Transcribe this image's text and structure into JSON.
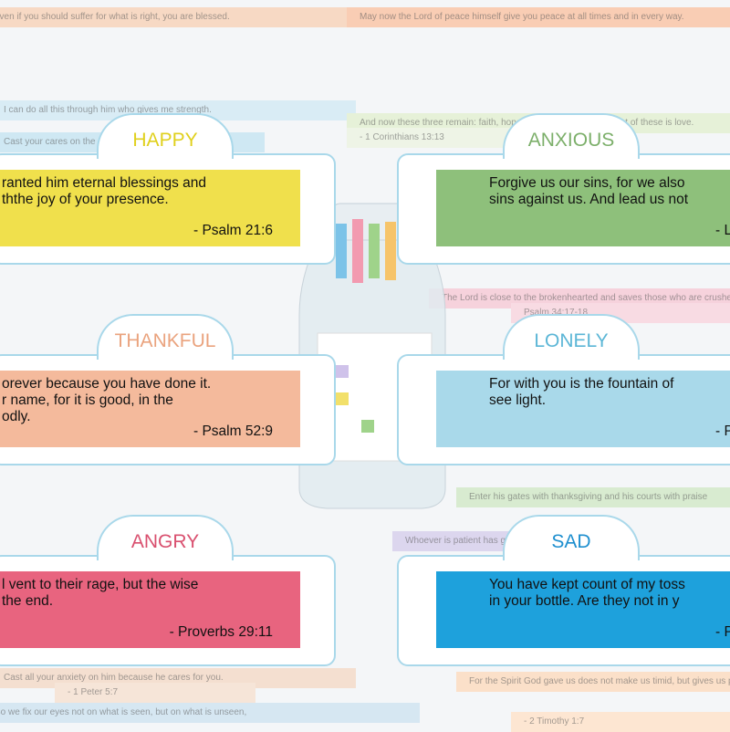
{
  "background": {
    "strips": [
      {
        "text": "even if you should suffer for what is right, you are blessed.",
        "color": "#f7d9c4"
      },
      {
        "text": "May now the Lord of peace himself give you peace at all times and in every way.",
        "color": "#f9cdb4"
      },
      {
        "text": "I can do all this through him who gives me strength.",
        "color": "#d9ecf5"
      },
      {
        "text": "And now these three remain: faith, hope and love. But the greatest of these is love.",
        "color": "#e6f1d8"
      },
      {
        "text": "- 1 Corinthians 13:13",
        "color": "#eef4e6"
      },
      {
        "text": "Cast your cares on the Lord",
        "color": "#cfe8f3"
      },
      {
        "text": "The Lord is close to the brokenhearted and saves those who are crushed in spirit.",
        "color": "#f6d2dc"
      },
      {
        "text": "Psalm 34:17-18",
        "color": "#f8dbe3"
      },
      {
        "text": "Enter his gates with thanksgiving and his courts with praise",
        "color": "#d8ebd0"
      },
      {
        "text": "Whoever is patient has great understanding",
        "color": "#dcd6ee"
      },
      {
        "text": "Cast all your anxiety on him because he cares for you.",
        "color": "#f4dfd0"
      },
      {
        "text": "- 1 Peter 5:7",
        "color": "#f6e5d8"
      },
      {
        "text": "For the Spirit God gave us does not make us timid, but gives us power, love and self-discipline.",
        "color": "#fbe0c9"
      },
      {
        "text": "- 2 Timothy 1:7",
        "color": "#fde6d2"
      },
      {
        "text": "So we fix our eyes not on what is seen, but on what is unseen,",
        "color": "#d6e7f2"
      }
    ]
  },
  "cards": [
    {
      "label": "HAPPY",
      "label_color": "#e0d01c",
      "box_color": "#f0e04c",
      "lines": [
        "ranted him eternal blessings and",
        "ththe joy of your presence."
      ],
      "reference": "- Psalm 21:6"
    },
    {
      "label": "ANXIOUS",
      "label_color": "#7caf6a",
      "box_color": "#8ec07b",
      "lines": [
        "Forgive us our sins, for we also",
        "sins against us. And lead us not"
      ],
      "reference": "- L"
    },
    {
      "label": "THANKFUL",
      "label_color": "#eaa37e",
      "box_color": "#f4ba9c",
      "lines": [
        "orever because you have done it.",
        "r name, for it is good, in the",
        "odly."
      ],
      "reference": "- Psalm 52:9"
    },
    {
      "label": "LONELY",
      "label_color": "#5bb6d6",
      "box_color": "#a9d9ea",
      "lines": [
        "For with you is the fountain of",
        "see light."
      ],
      "reference": "- P"
    },
    {
      "label": "ANGRY",
      "label_color": "#d9506f",
      "box_color": "#e8647f",
      "lines": [
        "l vent to their rage, but the wise",
        "the end."
      ],
      "reference": "- Proverbs 29:11"
    },
    {
      "label": "SAD",
      "label_color": "#1e8fcf",
      "box_color": "#1ea1dc",
      "lines": [
        "You have kept count of my toss",
        "in your bottle. Are they not in y"
      ],
      "reference": "- P"
    }
  ]
}
